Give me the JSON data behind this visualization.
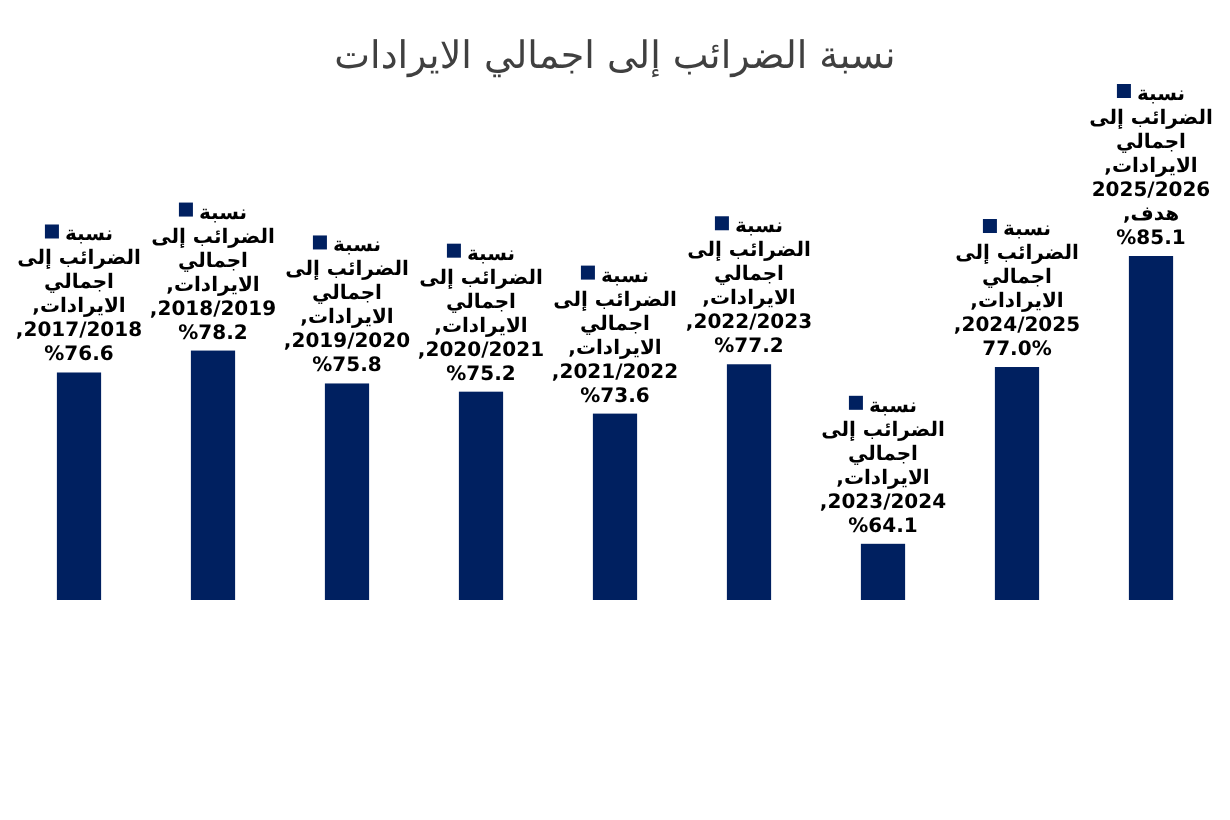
{
  "chart_data": {
    "type": "bar",
    "title": "نسبة الضرائب إلى اجمالي الايرادات",
    "categories": [
      null,
      null,
      null,
      null,
      null,
      null,
      null,
      null,
      null
    ],
    "ylim": [
      60,
      85.1
    ],
    "series": [
      {
        "color": "#002060",
        "values": [
          76.6,
          78.2,
          75.8,
          75.2,
          73.6,
          77.2,
          64.1,
          77.0,
          85.1
        ],
        "value_labels": [
          "نسبة الضرائب إلى اجمالي الايرادات, 2017/2018, %76.6",
          "نسبة الضرائب إلى اجمالي الايرادات, 2018/2019, %78.2",
          "نسبة الضرائب إلى اجمالي الايرادات, 2019/2020, %75.8",
          "نسبة الضرائب إلى اجمالي الايرادات, 2020/2021, %75.2",
          "نسبة الضرائب إلى اجمالي الايرادات, 2021/2022, %73.6",
          "نسبة الضرائب إلى اجمالي الايرادات, 2022/2023, %77.2",
          "نسبة الضرائب إلى اجمالي الايرادات, 2023/2024, %64.1",
          "نسبة الضرائب إلى اجمالي الايرادات, 2024/2025, 77.0%",
          "نسبة الضرائب إلى اجمالي الايرادات, 2025/2026 هدف, %85.1"
        ]
      }
    ]
  }
}
